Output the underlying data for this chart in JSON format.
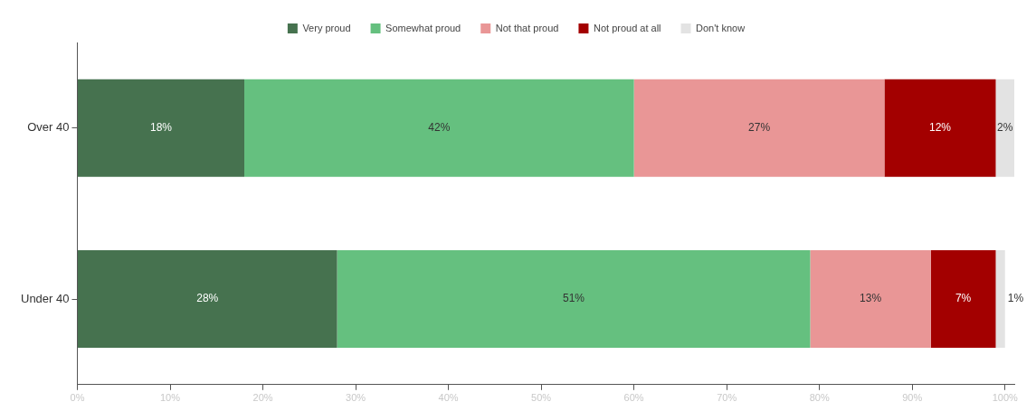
{
  "chart_data": {
    "type": "bar",
    "orientation": "horizontal",
    "stacked": true,
    "categories": [
      "Over 40",
      "Under 40"
    ],
    "series": [
      {
        "name": "Very proud",
        "color": "#46724f",
        "values": [
          18,
          28
        ]
      },
      {
        "name": "Somewhat proud",
        "color": "#65c07f",
        "values": [
          42,
          51
        ]
      },
      {
        "name": "Not that proud",
        "color": "#e99696",
        "values": [
          27,
          13
        ]
      },
      {
        "name": "Not proud at all",
        "color": "#a30000",
        "values": [
          12,
          7
        ]
      },
      {
        "name": "Don't know",
        "color": "#e3e3e3",
        "values": [
          2,
          1
        ]
      }
    ],
    "xlim": [
      0,
      101
    ],
    "xticks": [
      {
        "value": 0,
        "label": "0%"
      },
      {
        "value": 10,
        "label": "10%"
      },
      {
        "value": 20,
        "label": "20%"
      },
      {
        "value": 30,
        "label": "30%"
      },
      {
        "value": 40,
        "label": "40%"
      },
      {
        "value": 50,
        "label": "50%"
      },
      {
        "value": 60,
        "label": "60%"
      },
      {
        "value": 70,
        "label": "70%"
      },
      {
        "value": 80,
        "label": "80%"
      },
      {
        "value": 90,
        "label": "90%"
      },
      {
        "value": 100,
        "label": "100%"
      }
    ],
    "value_labels": [
      [
        "18%",
        "28%"
      ],
      [
        "42%",
        "51%"
      ],
      [
        "27%",
        "13%"
      ],
      [
        "12%",
        "7%"
      ],
      [
        "2%",
        "1%"
      ]
    ],
    "grid": false,
    "legend": "top"
  }
}
